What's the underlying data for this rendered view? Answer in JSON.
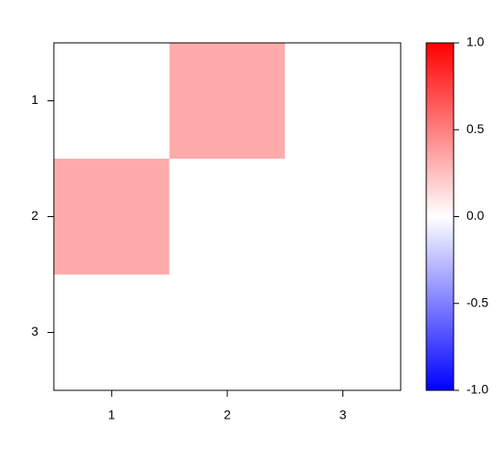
{
  "chart_data": {
    "type": "heatmap",
    "x_categories": [
      "1",
      "2",
      "3"
    ],
    "y_categories": [
      "1",
      "2",
      "3"
    ],
    "values": [
      [
        0,
        0.33,
        0
      ],
      [
        0.33,
        0,
        0
      ],
      [
        0,
        0,
        0
      ]
    ],
    "zlim": [
      -1,
      1
    ],
    "zticks": [
      {
        "value": 1,
        "label": "1.0"
      },
      {
        "value": 0.5,
        "label": "0.5"
      },
      {
        "value": 0,
        "label": "0.0"
      },
      {
        "value": -0.5,
        "label": "-0.5"
      },
      {
        "value": -1,
        "label": "-1.0"
      }
    ],
    "colors": {
      "low": "#0000FF",
      "mid": "#FFFFFF",
      "high": "#FF0000"
    }
  }
}
